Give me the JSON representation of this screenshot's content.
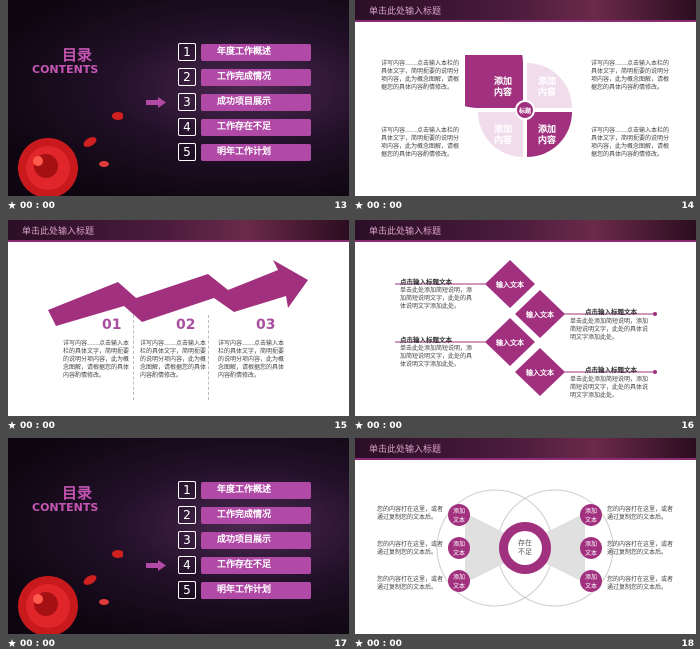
{
  "slides": [
    {
      "number": "13",
      "type": "toc",
      "title_cn": "目录",
      "title_en": "CONTENTS",
      "items": [
        {
          "n": "1",
          "label": "年度工作概述"
        },
        {
          "n": "2",
          "label": "工作完成情况"
        },
        {
          "n": "3",
          "label": "成功项目展示"
        },
        {
          "n": "4",
          "label": "工作存在不足"
        },
        {
          "n": "5",
          "label": "明年工作计划"
        }
      ],
      "active_index": 2
    },
    {
      "number": "14",
      "banner": "单击此处输入标题",
      "left_top_text": "详写内容……点击输入本栏的具体文字，简明扼要的说明分项内容，此为概念图解，请根据您的具体内容酌情修改。",
      "left_bottom_text": "详写内容……点击输入本栏的具体文字，简明扼要的说明分项内容，此为概念图解，请根据您的具体内容酌情修改。",
      "right_top_text": "详写内容……点击输入本栏的具体文字，简明扼要的说明分项内容，此为概念图解，请根据您的具体内容酌情修改。",
      "right_bottom_text": "详写内容……点击输入本栏的具体文字，简明扼要的说明分项内容，此为概念图解，请根据您的具体内容酌情修改。",
      "petals": [
        "添加\n内容",
        "添加\n内容",
        "添加\n内容",
        "添加\n内容"
      ],
      "center": "标题"
    },
    {
      "number": "15",
      "banner": "单击此处输入标题",
      "steps": [
        {
          "num": "01",
          "text": "详写内容……点击输入本栏的具体文字，简明扼要的说明分项内容，此为概念图解，请根据您的具体内容酌情修改。"
        },
        {
          "num": "02",
          "text": "详写内容……点击输入本栏的具体文字，简明扼要的说明分项内容，此为概念图解，请根据您的具体内容酌情修改。"
        },
        {
          "num": "03",
          "text": "详写内容……点击输入本栏的具体文字，简明扼要的说明分项内容，此为概念图解，请根据您的具体内容酌情修改。"
        }
      ]
    },
    {
      "number": "16",
      "banner": "单击此处输入标题",
      "diamond_label": "输入文本",
      "heading": "点击输入标题文本",
      "body": "单击此处添加简短说明，添加简短说明文字，此处的具体说明文字添加此处。"
    },
    {
      "number": "17",
      "type": "toc",
      "title_cn": "目录",
      "title_en": "CONTENTS",
      "items": [
        {
          "n": "1",
          "label": "年度工作概述"
        },
        {
          "n": "2",
          "label": "工作完成情况"
        },
        {
          "n": "3",
          "label": "成功项目展示"
        },
        {
          "n": "4",
          "label": "工作存在不足"
        },
        {
          "n": "5",
          "label": "明年工作计划"
        }
      ],
      "active_index": 3
    },
    {
      "number": "18",
      "banner": "单击此处输入标题",
      "center": "存在\n不足",
      "bubble": "添加\n文本",
      "side_text": "您的内容打在这里，或者通过复制您的文本后。"
    }
  ],
  "footer_time": "00 : 00"
}
